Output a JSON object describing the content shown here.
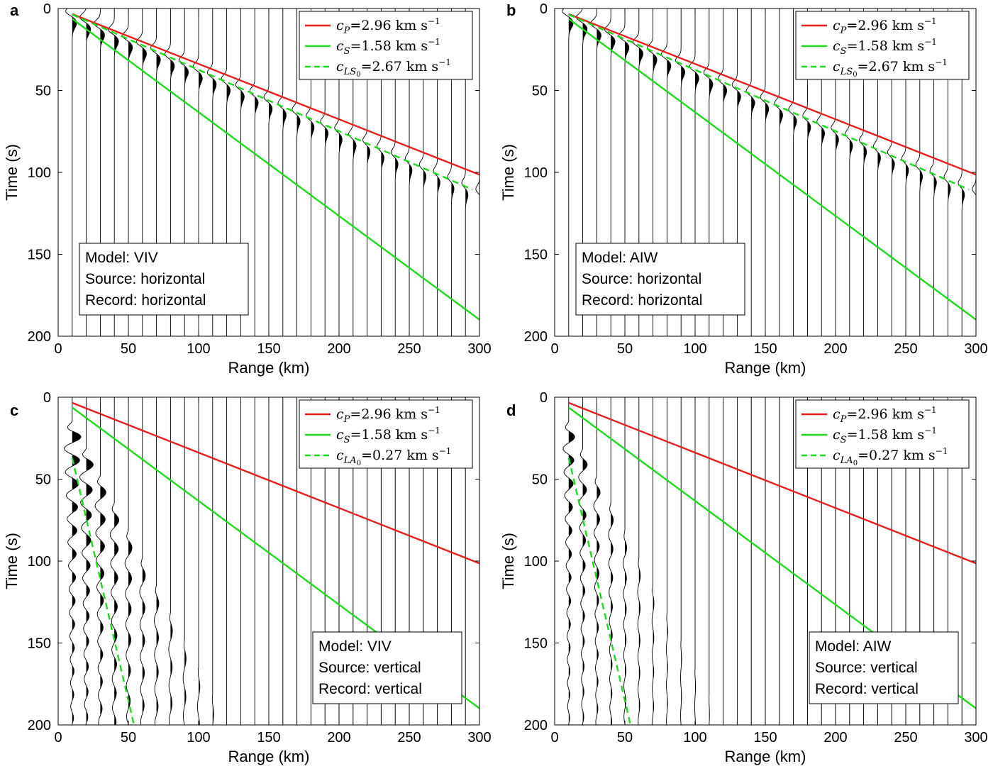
{
  "colors": {
    "p_line": "#e51f1f",
    "s_line": "#1ed91e",
    "axis": "#000000",
    "trace": "#000000",
    "background": "#ffffff"
  },
  "chart_data": [
    {
      "panel_label": "a",
      "type": "line",
      "title": "",
      "xlabel": "Range (km)",
      "ylabel": "Time (s)",
      "xlim": [
        0,
        300
      ],
      "ylim": [
        200,
        0
      ],
      "xticks": [
        "0",
        "50",
        "100",
        "150",
        "200",
        "250",
        "300"
      ],
      "yticks": [
        "0",
        "50",
        "100",
        "150",
        "200"
      ],
      "legend_position": "top-right",
      "info_position": "bottom-left",
      "series": [
        {
          "name": "c_P=2.96 km s^-1",
          "symbol": "c",
          "sub": "P",
          "value_text": "=2.96",
          "unit_text": " km s",
          "exp_text": "−1",
          "color_key": "p_line",
          "style": "solid",
          "x": [
            10,
            300
          ],
          "y": [
            3.4,
            101.4
          ]
        },
        {
          "name": "c_S=1.58 km s^-1",
          "symbol": "c",
          "sub": "S",
          "value_text": "=1.58",
          "unit_text": " km s",
          "exp_text": "−1",
          "color_key": "s_line",
          "style": "solid",
          "x": [
            10,
            300
          ],
          "y": [
            6.3,
            189.9
          ]
        },
        {
          "name": "c_LS0=2.67 km s^-1",
          "symbol": "c",
          "sub": "LS",
          "subsub": "0",
          "value_text": "=2.67",
          "unit_text": " km s",
          "exp_text": "−1",
          "color_key": "s_line",
          "style": "dashed",
          "x": [
            10,
            295
          ],
          "y": [
            3.7,
            110.5
          ]
        }
      ],
      "traces": {
        "offsets_km": [
          10,
          20,
          30,
          40,
          50,
          60,
          70,
          80,
          90,
          100,
          110,
          120,
          130,
          140,
          150,
          160,
          170,
          180,
          190,
          200,
          210,
          220,
          230,
          240,
          250,
          260,
          270,
          280,
          290,
          300
        ],
        "wave": "lamb_s0",
        "velocity_km_s": 2.67,
        "amplitude_km": 5,
        "decay_per_km": 0.002
      },
      "info": {
        "model": "Model: VIV",
        "source": "Source: horizontal",
        "record": "Record: horizontal"
      }
    },
    {
      "panel_label": "b",
      "type": "line",
      "title": "",
      "xlabel": "Range (km)",
      "ylabel": "Time (s)",
      "xlim": [
        0,
        300
      ],
      "ylim": [
        200,
        0
      ],
      "xticks": [
        "0",
        "50",
        "100",
        "150",
        "200",
        "250",
        "300"
      ],
      "yticks": [
        "0",
        "50",
        "100",
        "150",
        "200"
      ],
      "legend_position": "top-right",
      "info_position": "bottom-left",
      "series": [
        {
          "name": "c_P=2.96 km s^-1",
          "symbol": "c",
          "sub": "P",
          "value_text": "=2.96",
          "unit_text": " km s",
          "exp_text": "−1",
          "color_key": "p_line",
          "style": "solid",
          "x": [
            10,
            300
          ],
          "y": [
            3.4,
            101.4
          ]
        },
        {
          "name": "c_S=1.58 km s^-1",
          "symbol": "c",
          "sub": "S",
          "value_text": "=1.58",
          "unit_text": " km s",
          "exp_text": "−1",
          "color_key": "s_line",
          "style": "solid",
          "x": [
            10,
            300
          ],
          "y": [
            6.3,
            189.9
          ]
        },
        {
          "name": "c_LS0=2.67 km s^-1",
          "symbol": "c",
          "sub": "LS",
          "subsub": "0",
          "value_text": "=2.67",
          "unit_text": " km s",
          "exp_text": "−1",
          "color_key": "s_line",
          "style": "dashed",
          "x": [
            10,
            295
          ],
          "y": [
            3.7,
            110.5
          ]
        }
      ],
      "traces": {
        "offsets_km": [
          10,
          20,
          30,
          40,
          50,
          60,
          70,
          80,
          90,
          100,
          110,
          120,
          130,
          140,
          150,
          160,
          170,
          180,
          190,
          200,
          210,
          220,
          230,
          240,
          250,
          260,
          270,
          280,
          290,
          300
        ],
        "wave": "lamb_s0",
        "velocity_km_s": 2.67,
        "amplitude_km": 5,
        "decay_per_km": 0.002
      },
      "info": {
        "model": "Model: AIW",
        "source": "Source: horizontal",
        "record": "Record: horizontal"
      }
    },
    {
      "panel_label": "c",
      "type": "line",
      "title": "",
      "xlabel": "Range (km)",
      "ylabel": "Time (s)",
      "xlim": [
        0,
        300
      ],
      "ylim": [
        200,
        0
      ],
      "xticks": [
        "0",
        "50",
        "100",
        "150",
        "200",
        "250",
        "300"
      ],
      "yticks": [
        "0",
        "50",
        "100",
        "150",
        "200"
      ],
      "legend_position": "top-right",
      "info_position": "bottom-right",
      "series": [
        {
          "name": "c_P=2.96 km s^-1",
          "symbol": "c",
          "sub": "P",
          "value_text": "=2.96",
          "unit_text": " km s",
          "exp_text": "−1",
          "color_key": "p_line",
          "style": "solid",
          "x": [
            10,
            300
          ],
          "y": [
            3.4,
            101.4
          ]
        },
        {
          "name": "c_S=1.58 km s^-1",
          "symbol": "c",
          "sub": "S",
          "value_text": "=1.58",
          "unit_text": " km s",
          "exp_text": "−1",
          "color_key": "s_line",
          "style": "solid",
          "x": [
            10,
            300
          ],
          "y": [
            6.3,
            189.9
          ]
        },
        {
          "name": "c_LA0=0.27 km s^-1",
          "symbol": "c",
          "sub": "LA",
          "subsub": "0",
          "value_text": "=0.27",
          "unit_text": " km s",
          "exp_text": "−1",
          "color_key": "s_line",
          "style": "dashed",
          "x": [
            10,
            54
          ],
          "y": [
            37,
            200
          ]
        }
      ],
      "traces": {
        "offsets_km": [
          10,
          20,
          30,
          40,
          50,
          60,
          70,
          80,
          90,
          100,
          110,
          120,
          130,
          140,
          150,
          160,
          170,
          180,
          190,
          200,
          210,
          220,
          230,
          240,
          250,
          260,
          270,
          280,
          290,
          300
        ],
        "wave": "lamb_a0",
        "velocity_km_s": 0.27,
        "amplitude_km": 8,
        "decay_per_km": 0.022,
        "cutoff_km": 150
      },
      "info": {
        "model": "Model: VIV",
        "source": "Source: vertical",
        "record": "Record: vertical"
      }
    },
    {
      "panel_label": "d",
      "type": "line",
      "title": "",
      "xlabel": "Range (km)",
      "ylabel": "Time (s)",
      "xlim": [
        0,
        300
      ],
      "ylim": [
        200,
        0
      ],
      "xticks": [
        "0",
        "50",
        "100",
        "150",
        "200",
        "250",
        "300"
      ],
      "yticks": [
        "0",
        "50",
        "100",
        "150",
        "200"
      ],
      "legend_position": "top-right",
      "info_position": "bottom-right",
      "series": [
        {
          "name": "c_P=2.96 km s^-1",
          "symbol": "c",
          "sub": "P",
          "value_text": "=2.96",
          "unit_text": " km s",
          "exp_text": "−1",
          "color_key": "p_line",
          "style": "solid",
          "x": [
            10,
            300
          ],
          "y": [
            3.4,
            101.4
          ]
        },
        {
          "name": "c_S=1.58 km s^-1",
          "symbol": "c",
          "sub": "S",
          "value_text": "=1.58",
          "unit_text": " km s",
          "exp_text": "−1",
          "color_key": "s_line",
          "style": "solid",
          "x": [
            10,
            300
          ],
          "y": [
            6.3,
            189.9
          ]
        },
        {
          "name": "c_LA0=0.27 km s^-1",
          "symbol": "c",
          "sub": "LA",
          "subsub": "0",
          "value_text": "=0.27",
          "unit_text": " km s",
          "exp_text": "−1",
          "color_key": "s_line",
          "style": "dashed",
          "x": [
            10,
            54
          ],
          "y": [
            37,
            200
          ]
        }
      ],
      "traces": {
        "offsets_km": [
          10,
          20,
          30,
          40,
          50,
          60,
          70,
          80,
          90,
          100,
          110,
          120,
          130,
          140,
          150,
          160,
          170,
          180,
          190,
          200,
          210,
          220,
          230,
          240,
          250,
          260,
          270,
          280,
          290,
          300
        ],
        "wave": "lamb_a0",
        "velocity_km_s": 0.27,
        "amplitude_km": 6,
        "decay_per_km": 0.03,
        "cutoff_km": 130
      },
      "info": {
        "model": "Model: AIW",
        "source": "Source: vertical",
        "record": "Record: vertical"
      }
    }
  ]
}
